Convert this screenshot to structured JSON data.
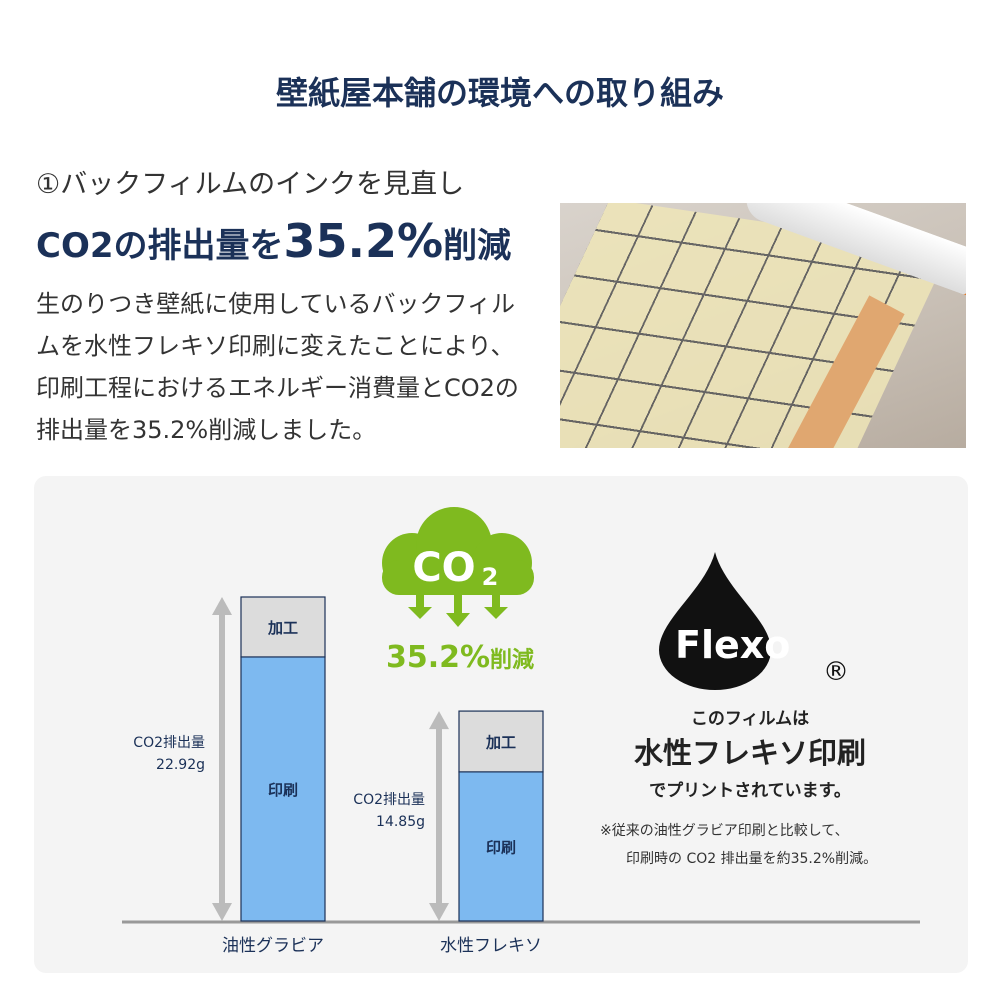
{
  "title": "壁紙屋本舗の環境への取り組み",
  "section": {
    "subtitle": "①バックフィルムのインクを見直し",
    "headline_pre": "CO2の排出量を",
    "headline_value": "35.2%",
    "headline_post": "削減",
    "body": "生のりつき壁紙に使用しているバックフィルムを水性フレキソ印刷に変えたことにより、印刷工程におけるエネルギー消費量とCO2の排出量を35.2%削減しました。"
  },
  "badge": {
    "cloud_text": "CO",
    "cloud_sub": "2",
    "reduction_value": "35.2%",
    "reduction_label": "削減",
    "color": "#7fba1f"
  },
  "flexo": {
    "logo_text": "Flexo",
    "registered": "®",
    "line1": "このフィルムは",
    "line2": "水性フレキソ印刷",
    "line3": "でプリントされています。",
    "note1": "※従来の油性グラビア印刷と比較して、",
    "note2": "印刷時の CO2 排出量を約35.2%削減。"
  },
  "chart_data": {
    "type": "bar",
    "stacked": true,
    "categories": [
      "油性グラビア",
      "水性フレキソ"
    ],
    "series": [
      {
        "name": "印刷",
        "values": [
          18.68,
          10.55
        ],
        "color": "#7db9f0"
      },
      {
        "name": "加工",
        "values": [
          4.24,
          4.3
        ],
        "color": "#dcdcdc"
      }
    ],
    "totals": [
      22.92,
      14.85
    ],
    "total_labels": [
      {
        "label": "CO2排出量",
        "value": "22.92g"
      },
      {
        "label": "CO2排出量",
        "value": "14.85g"
      }
    ],
    "ylim": [
      0,
      22.92
    ],
    "grid": false
  }
}
